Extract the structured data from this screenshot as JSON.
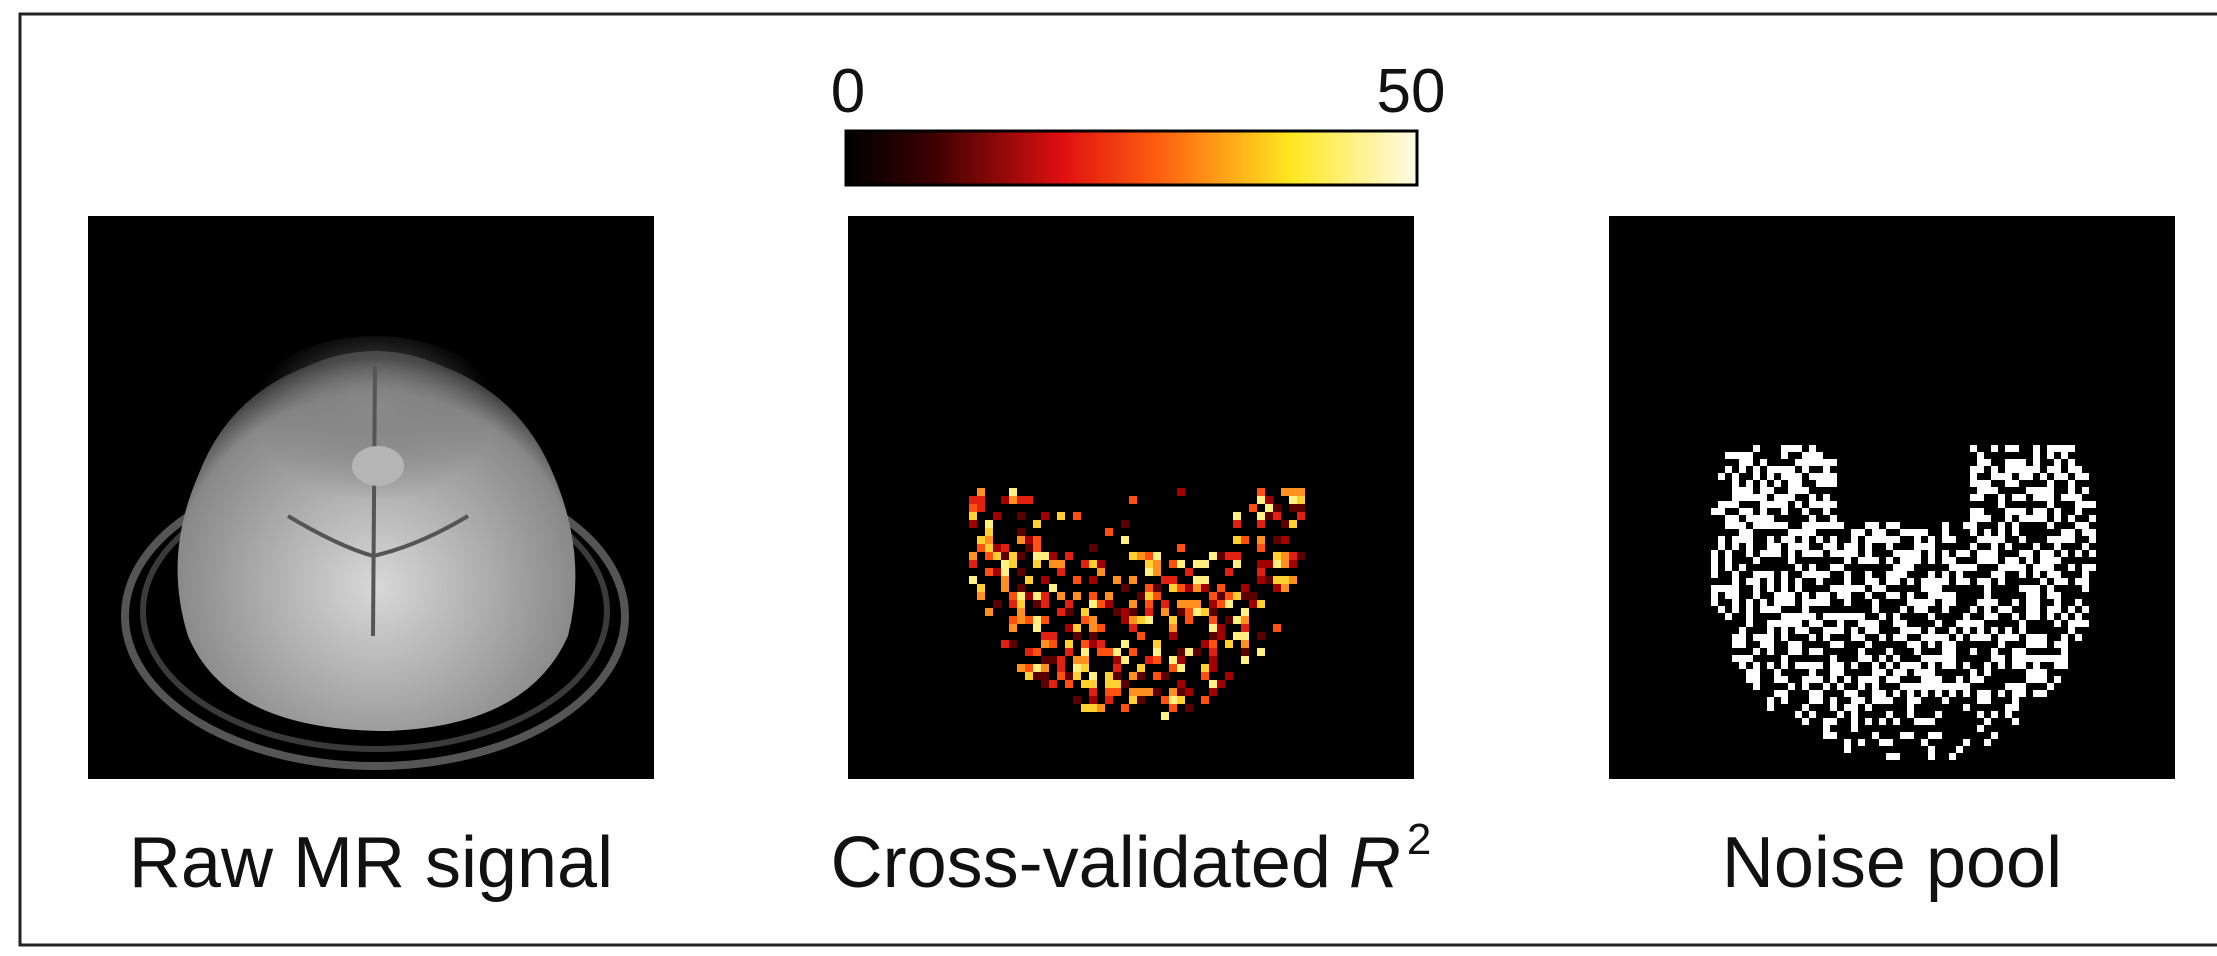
{
  "colorbar": {
    "ticks": [
      0,
      50
    ]
  },
  "panels": [
    {
      "label": "Raw MR signal"
    },
    {
      "label": "Cross-validated",
      "variable": "R",
      "superscript": "2"
    },
    {
      "label": "Noise pool"
    }
  ]
}
